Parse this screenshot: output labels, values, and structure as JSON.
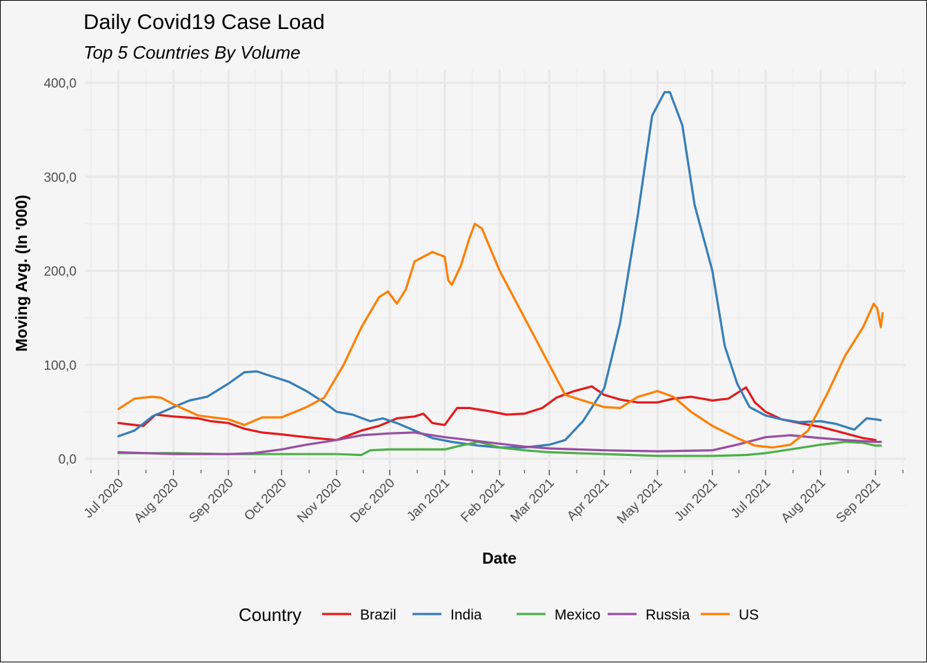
{
  "chart_data": {
    "type": "line",
    "title": "Daily Covid19 Case Load",
    "subtitle": "Top 5 Countries By Volume",
    "xlabel": "Date",
    "ylabel": "Moving Avg. (In '000)",
    "ylim": [
      0,
      400
    ],
    "yticks": [
      {
        "value": 0,
        "label": "0,0"
      },
      {
        "value": 100,
        "label": "100,0"
      },
      {
        "value": 200,
        "label": "200,0"
      },
      {
        "value": 300,
        "label": "300,0"
      },
      {
        "value": 400,
        "label": "400,0"
      }
    ],
    "xlim": [
      "2020-06-12",
      "2021-09-18"
    ],
    "xticks": [
      {
        "date": "2020-07-01",
        "label": "Jul 2020"
      },
      {
        "date": "2020-08-01",
        "label": "Aug 2020"
      },
      {
        "date": "2020-09-01",
        "label": "Sep 2020"
      },
      {
        "date": "2020-10-01",
        "label": "Oct 2020"
      },
      {
        "date": "2020-11-01",
        "label": "Nov 2020"
      },
      {
        "date": "2020-12-01",
        "label": "Dec 2020"
      },
      {
        "date": "2021-01-01",
        "label": "Jan 2021"
      },
      {
        "date": "2021-02-01",
        "label": "Feb 2021"
      },
      {
        "date": "2021-03-01",
        "label": "Mar 2021"
      },
      {
        "date": "2021-04-01",
        "label": "Apr 2021"
      },
      {
        "date": "2021-05-01",
        "label": "May 2021"
      },
      {
        "date": "2021-06-01",
        "label": "Jun 2021"
      },
      {
        "date": "2021-07-01",
        "label": "Jul 2021"
      },
      {
        "date": "2021-08-01",
        "label": "Aug 2021"
      },
      {
        "date": "2021-09-01",
        "label": "Sep 2021"
      }
    ],
    "grid": true,
    "legend_position": "bottom",
    "legend_title": "Country",
    "series": [
      {
        "name": "Brazil",
        "color": "#e41a1c",
        "points": [
          [
            "2020-07-01",
            38
          ],
          [
            "2020-07-10",
            36
          ],
          [
            "2020-07-15",
            35
          ],
          [
            "2020-07-22",
            47
          ],
          [
            "2020-08-01",
            45
          ],
          [
            "2020-08-15",
            43
          ],
          [
            "2020-08-22",
            40
          ],
          [
            "2020-09-01",
            38
          ],
          [
            "2020-09-10",
            32
          ],
          [
            "2020-09-20",
            28
          ],
          [
            "2020-10-01",
            26
          ],
          [
            "2020-10-10",
            24
          ],
          [
            "2020-10-20",
            22
          ],
          [
            "2020-11-01",
            20
          ],
          [
            "2020-11-08",
            25
          ],
          [
            "2020-11-15",
            30
          ],
          [
            "2020-11-25",
            35
          ],
          [
            "2020-12-05",
            43
          ],
          [
            "2020-12-15",
            45
          ],
          [
            "2020-12-20",
            48
          ],
          [
            "2020-12-25",
            38
          ],
          [
            "2021-01-01",
            36
          ],
          [
            "2021-01-08",
            54
          ],
          [
            "2021-01-15",
            54
          ],
          [
            "2021-01-25",
            51
          ],
          [
            "2021-02-05",
            47
          ],
          [
            "2021-02-15",
            48
          ],
          [
            "2021-02-25",
            54
          ],
          [
            "2021-03-05",
            65
          ],
          [
            "2021-03-15",
            72
          ],
          [
            "2021-03-25",
            77
          ],
          [
            "2021-04-01",
            68
          ],
          [
            "2021-04-10",
            63
          ],
          [
            "2021-04-20",
            60
          ],
          [
            "2021-05-01",
            60
          ],
          [
            "2021-05-10",
            64
          ],
          [
            "2021-05-20",
            66
          ],
          [
            "2021-06-01",
            62
          ],
          [
            "2021-06-10",
            64
          ],
          [
            "2021-06-20",
            76
          ],
          [
            "2021-06-25",
            60
          ],
          [
            "2021-07-01",
            50
          ],
          [
            "2021-07-10",
            42
          ],
          [
            "2021-07-20",
            38
          ],
          [
            "2021-08-01",
            34
          ],
          [
            "2021-08-15",
            27
          ],
          [
            "2021-08-25",
            22
          ],
          [
            "2021-09-01",
            20
          ]
        ]
      },
      {
        "name": "India",
        "color": "#377eb8",
        "points": [
          [
            "2020-07-01",
            24
          ],
          [
            "2020-07-10",
            30
          ],
          [
            "2020-07-20",
            45
          ],
          [
            "2020-08-01",
            55
          ],
          [
            "2020-08-10",
            62
          ],
          [
            "2020-08-20",
            66
          ],
          [
            "2020-09-01",
            80
          ],
          [
            "2020-09-10",
            92
          ],
          [
            "2020-09-17",
            93
          ],
          [
            "2020-09-25",
            88
          ],
          [
            "2020-10-05",
            82
          ],
          [
            "2020-10-15",
            72
          ],
          [
            "2020-10-25",
            60
          ],
          [
            "2020-11-01",
            50
          ],
          [
            "2020-11-10",
            47
          ],
          [
            "2020-11-20",
            40
          ],
          [
            "2020-11-27",
            43
          ],
          [
            "2020-12-05",
            38
          ],
          [
            "2020-12-15",
            30
          ],
          [
            "2020-12-25",
            22
          ],
          [
            "2021-01-05",
            18
          ],
          [
            "2021-01-20",
            14
          ],
          [
            "2021-02-01",
            12
          ],
          [
            "2021-02-15",
            12
          ],
          [
            "2021-03-01",
            15
          ],
          [
            "2021-03-10",
            20
          ],
          [
            "2021-03-20",
            40
          ],
          [
            "2021-04-01",
            75
          ],
          [
            "2021-04-10",
            145
          ],
          [
            "2021-04-20",
            260
          ],
          [
            "2021-04-28",
            365
          ],
          [
            "2021-05-05",
            390
          ],
          [
            "2021-05-08",
            390
          ],
          [
            "2021-05-15",
            355
          ],
          [
            "2021-05-22",
            270
          ],
          [
            "2021-06-01",
            200
          ],
          [
            "2021-06-08",
            120
          ],
          [
            "2021-06-15",
            80
          ],
          [
            "2021-06-22",
            55
          ],
          [
            "2021-07-01",
            46
          ],
          [
            "2021-07-10",
            42
          ],
          [
            "2021-07-20",
            39
          ],
          [
            "2021-08-01",
            40
          ],
          [
            "2021-08-10",
            37
          ],
          [
            "2021-08-20",
            31
          ],
          [
            "2021-08-27",
            43
          ],
          [
            "2021-09-01",
            42
          ],
          [
            "2021-09-04",
            41
          ]
        ]
      },
      {
        "name": "Mexico",
        "color": "#4daf4a",
        "points": [
          [
            "2020-07-01",
            6
          ],
          [
            "2020-08-01",
            6
          ],
          [
            "2020-09-01",
            5
          ],
          [
            "2020-10-01",
            5
          ],
          [
            "2020-10-10",
            5
          ],
          [
            "2020-11-01",
            5
          ],
          [
            "2020-11-15",
            4
          ],
          [
            "2020-11-20",
            9
          ],
          [
            "2020-12-01",
            10
          ],
          [
            "2020-12-15",
            10
          ],
          [
            "2021-01-01",
            10
          ],
          [
            "2021-01-10",
            14
          ],
          [
            "2021-01-20",
            18
          ],
          [
            "2021-02-01",
            12
          ],
          [
            "2021-02-15",
            9
          ],
          [
            "2021-03-01",
            7
          ],
          [
            "2021-04-01",
            5
          ],
          [
            "2021-05-01",
            3
          ],
          [
            "2021-06-01",
            3
          ],
          [
            "2021-06-20",
            4
          ],
          [
            "2021-07-01",
            6
          ],
          [
            "2021-07-15",
            10
          ],
          [
            "2021-08-01",
            15
          ],
          [
            "2021-08-15",
            18
          ],
          [
            "2021-08-25",
            17
          ],
          [
            "2021-09-01",
            14
          ],
          [
            "2021-09-04",
            14
          ]
        ]
      },
      {
        "name": "Russia",
        "color": "#984ea3",
        "points": [
          [
            "2020-07-01",
            7
          ],
          [
            "2020-08-01",
            5
          ],
          [
            "2020-09-01",
            5
          ],
          [
            "2020-09-15",
            6
          ],
          [
            "2020-10-01",
            10
          ],
          [
            "2020-10-15",
            15
          ],
          [
            "2020-11-01",
            20
          ],
          [
            "2020-11-15",
            25
          ],
          [
            "2020-12-01",
            27
          ],
          [
            "2020-12-15",
            28
          ],
          [
            "2021-01-01",
            23
          ],
          [
            "2021-01-15",
            20
          ],
          [
            "2021-02-01",
            16
          ],
          [
            "2021-02-15",
            13
          ],
          [
            "2021-03-01",
            11
          ],
          [
            "2021-04-01",
            9
          ],
          [
            "2021-05-01",
            8
          ],
          [
            "2021-06-01",
            9
          ],
          [
            "2021-06-15",
            15
          ],
          [
            "2021-07-01",
            23
          ],
          [
            "2021-07-15",
            25
          ],
          [
            "2021-08-01",
            22
          ],
          [
            "2021-08-15",
            20
          ],
          [
            "2021-09-01",
            18
          ],
          [
            "2021-09-04",
            18
          ]
        ]
      },
      {
        "name": "US",
        "color": "#ff7f00",
        "points": [
          [
            "2020-07-01",
            53
          ],
          [
            "2020-07-10",
            64
          ],
          [
            "2020-07-20",
            66
          ],
          [
            "2020-07-25",
            65
          ],
          [
            "2020-08-01",
            58
          ],
          [
            "2020-08-15",
            46
          ],
          [
            "2020-09-01",
            42
          ],
          [
            "2020-09-10",
            36
          ],
          [
            "2020-09-20",
            44
          ],
          [
            "2020-10-01",
            44
          ],
          [
            "2020-10-15",
            55
          ],
          [
            "2020-10-25",
            65
          ],
          [
            "2020-11-05",
            100
          ],
          [
            "2020-11-15",
            140
          ],
          [
            "2020-11-25",
            172
          ],
          [
            "2020-11-30",
            178
          ],
          [
            "2020-12-05",
            165
          ],
          [
            "2020-12-10",
            180
          ],
          [
            "2020-12-15",
            210
          ],
          [
            "2020-12-25",
            220
          ],
          [
            "2021-01-01",
            215
          ],
          [
            "2021-01-03",
            190
          ],
          [
            "2021-01-05",
            185
          ],
          [
            "2021-01-10",
            205
          ],
          [
            "2021-01-15",
            235
          ],
          [
            "2021-01-18",
            250
          ],
          [
            "2021-01-22",
            245
          ],
          [
            "2021-02-01",
            200
          ],
          [
            "2021-02-15",
            150
          ],
          [
            "2021-03-01",
            100
          ],
          [
            "2021-03-10",
            68
          ],
          [
            "2021-03-20",
            62
          ],
          [
            "2021-04-01",
            55
          ],
          [
            "2021-04-10",
            54
          ],
          [
            "2021-04-20",
            66
          ],
          [
            "2021-05-01",
            72
          ],
          [
            "2021-05-10",
            66
          ],
          [
            "2021-05-20",
            50
          ],
          [
            "2021-06-01",
            35
          ],
          [
            "2021-06-15",
            22
          ],
          [
            "2021-06-25",
            14
          ],
          [
            "2021-07-05",
            12
          ],
          [
            "2021-07-15",
            15
          ],
          [
            "2021-07-25",
            30
          ],
          [
            "2021-08-05",
            70
          ],
          [
            "2021-08-15",
            110
          ],
          [
            "2021-08-25",
            140
          ],
          [
            "2021-08-31",
            165
          ],
          [
            "2021-09-02",
            160
          ],
          [
            "2021-09-04",
            140
          ],
          [
            "2021-09-05",
            155
          ]
        ]
      }
    ]
  }
}
